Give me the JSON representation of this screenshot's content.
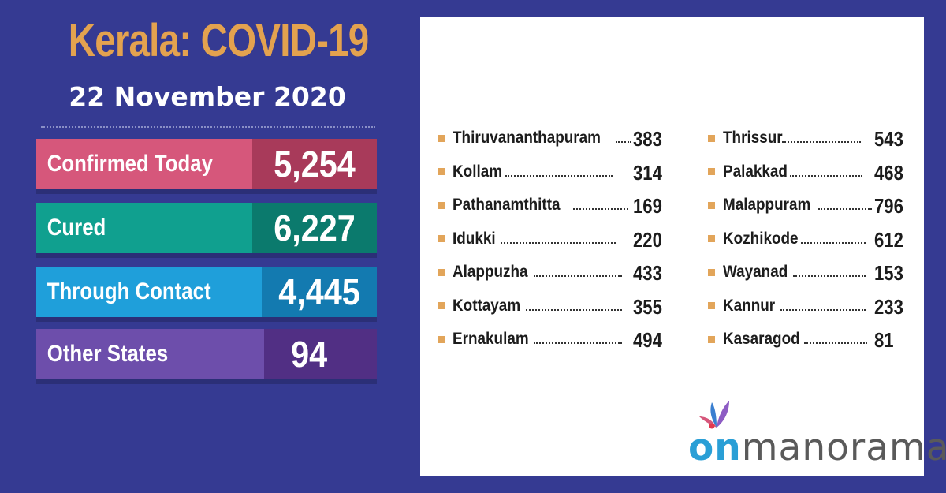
{
  "header": {
    "title": "Kerala: COVID-19",
    "date": "22 November 2020"
  },
  "stats": [
    {
      "label": "Confirmed Today",
      "value": "5,254",
      "color": "#d6577b"
    },
    {
      "label": "Cured",
      "value": "6,227",
      "color": "#10a08f"
    },
    {
      "label": "Through Contact",
      "value": "4,445",
      "color": "#1f9fda"
    },
    {
      "label": "Other States",
      "value": "94",
      "color": "#6d4eab"
    }
  ],
  "districts_left": [
    {
      "name": "Thiruvananthapuram",
      "value": "383"
    },
    {
      "name": "Kollam",
      "value": "314"
    },
    {
      "name": "Pathanamthitta",
      "value": "169"
    },
    {
      "name": "Idukki",
      "value": "220"
    },
    {
      "name": "Alappuzha",
      "value": "433"
    },
    {
      "name": "Kottayam",
      "value": "355"
    },
    {
      "name": "Ernakulam",
      "value": "494"
    }
  ],
  "districts_right": [
    {
      "name": "Thrissur",
      "value": "543"
    },
    {
      "name": "Palakkad",
      "value": "468"
    },
    {
      "name": "Malappuram",
      "value": "796"
    },
    {
      "name": "Kozhikode",
      "value": "612"
    },
    {
      "name": "Wayanad",
      "value": "153"
    },
    {
      "name": "Kannur",
      "value": "233"
    },
    {
      "name": "Kasaragod",
      "value": "81"
    }
  ],
  "logo": {
    "brand_prefix": "on",
    "brand_rest": "manorama",
    "icon": "butterfly-icon"
  },
  "colors": {
    "background": "#353a92",
    "title": "#e3a24f",
    "bullet": "#e2a55a"
  }
}
